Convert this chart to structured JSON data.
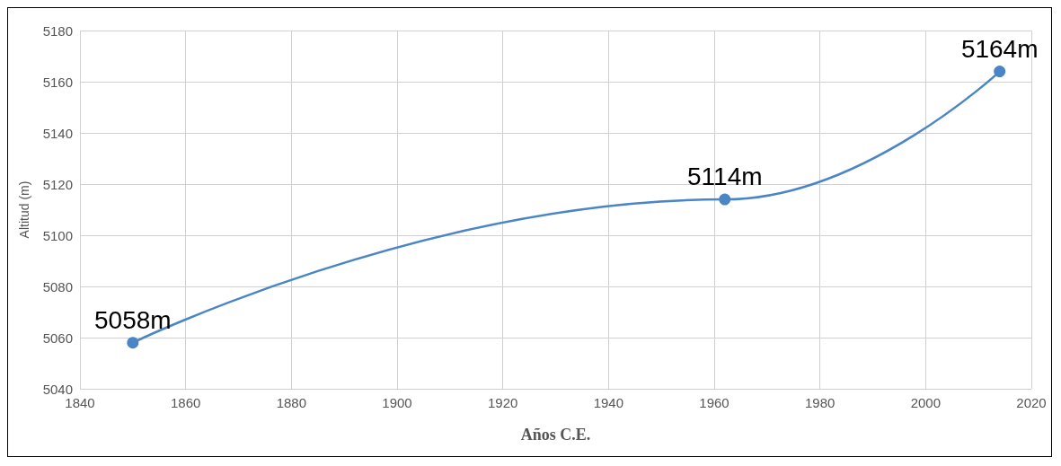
{
  "chart_data": {
    "type": "line",
    "xlabel": "Años C.E.",
    "ylabel": "Altitud (m)",
    "x": [
      1850,
      1962,
      2014
    ],
    "series": [
      {
        "color": "#4a86c5",
        "values": [
          5058,
          5114,
          5164
        ],
        "value_labels": [
          "5058m",
          "5114m",
          "5164m"
        ]
      }
    ],
    "xlim": [
      1840,
      2020
    ],
    "xticks": [
      1840,
      1860,
      1880,
      1900,
      1920,
      1940,
      1960,
      1980,
      2000,
      2020
    ],
    "ylim": [
      5040,
      5180
    ],
    "yticks": [
      5040,
      5060,
      5080,
      5100,
      5120,
      5140,
      5160,
      5180
    ],
    "grid": true,
    "marker": "circle",
    "line_style": "solid"
  }
}
